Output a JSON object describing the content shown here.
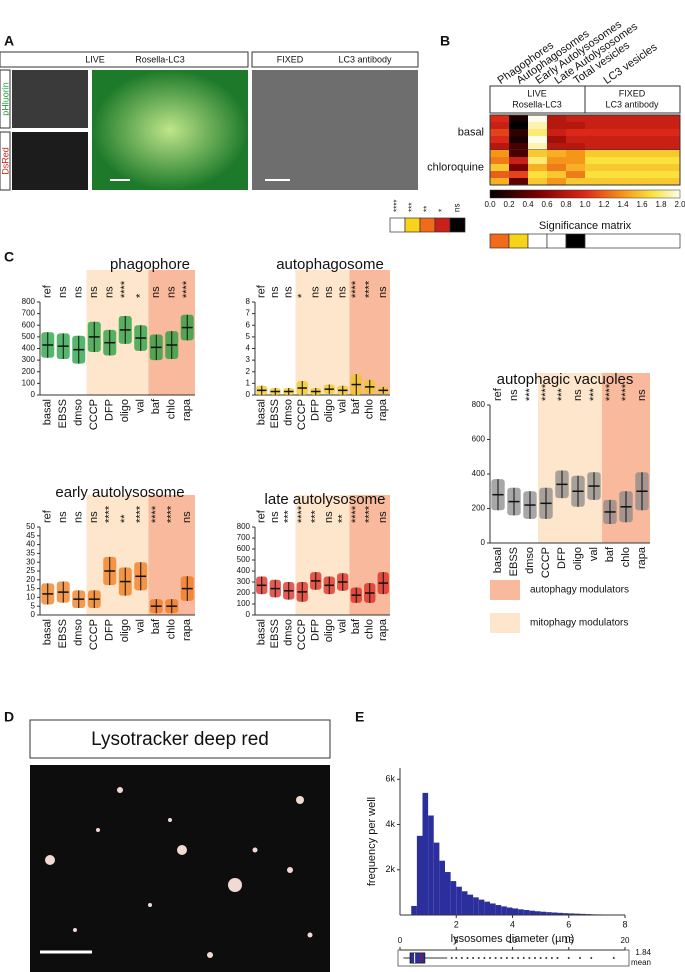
{
  "panel_a": {
    "label": "A",
    "live_header": "LIVE",
    "live_probe": "Rosella-LC3",
    "fixed_header": "FIXED",
    "fixed_probe": "LC3 antibody",
    "channel_green": "pHluorin",
    "channel_red": "DsRed"
  },
  "panel_b": {
    "label": "B",
    "columns": [
      "Phagophores",
      "Autophagosomes",
      "Early Autolysosomes",
      "Late Autolysosomes",
      "Total vesicles",
      "LC3 vesicles"
    ],
    "live_header": "LIVE",
    "live_probe": "Rosella-LC3",
    "fixed_header": "FIXED",
    "fixed_probe": "LC3 antibody",
    "row_groups": [
      {
        "name": "basal",
        "values": [
          [
            1.0,
            0.1,
            2.0,
            0.8,
            0.9,
            0.9
          ],
          [
            0.9,
            0.0,
            1.9,
            0.8,
            0.8,
            0.9
          ],
          [
            1.1,
            0.2,
            1.8,
            0.9,
            1.0,
            1.0
          ],
          [
            1.0,
            0.1,
            2.0,
            0.7,
            0.9,
            0.9
          ],
          [
            0.8,
            0.3,
            1.9,
            0.8,
            0.8,
            0.9
          ]
        ]
      },
      {
        "name": "chloroquine",
        "values": [
          [
            1.4,
            0.3,
            1.6,
            1.5,
            1.4,
            1.6
          ],
          [
            1.3,
            0.9,
            1.8,
            1.4,
            1.4,
            1.7
          ],
          [
            1.6,
            0.5,
            1.5,
            1.3,
            1.5,
            1.6
          ],
          [
            1.2,
            1.1,
            1.7,
            1.6,
            1.3,
            1.7
          ],
          [
            1.5,
            0.4,
            1.6,
            1.4,
            1.6,
            1.6
          ]
        ]
      }
    ],
    "colorbar_lim": [
      0,
      2
    ],
    "colorbar_ticks": [
      {
        "value": 0,
        "label": "0.0"
      },
      0.2,
      0.4,
      0.6,
      0.8,
      {
        "value": 1,
        "label": "1.0"
      },
      1.2,
      1.4,
      1.6,
      1.8,
      {
        "value": 2,
        "label": "2.0"
      }
    ],
    "significance_legend": [
      "****",
      "***",
      "**",
      "*",
      "ns"
    ],
    "significance_colors": [
      "#ffffff",
      "#f7d31a",
      "#f26b1a",
      "#c9201a",
      "#000000"
    ],
    "significance_title": "Significance matrix",
    "significance_matrix": [
      "**",
      "***",
      "****",
      "****",
      "ns",
      "****"
    ]
  },
  "panel_c": {
    "label": "C",
    "categories": [
      "basal",
      "EBSS",
      "dmso",
      "CCCP",
      "DFP",
      "oligo",
      "val",
      "baf",
      "chlo",
      "rapa"
    ],
    "charts": [
      {
        "title": "phagophore",
        "color": "#1f9e3c",
        "ylim": [
          0,
          800
        ],
        "yticks": [
          0,
          100,
          200,
          300,
          400,
          500,
          600,
          700,
          800
        ],
        "significance": [
          "ref",
          "ns",
          "ns",
          "ns",
          "ns",
          "****",
          "*",
          "ns",
          "ns",
          "****"
        ],
        "means": [
          430,
          420,
          390,
          500,
          450,
          560,
          490,
          410,
          430,
          580
        ],
        "sd": [
          110,
          110,
          120,
          130,
          110,
          120,
          110,
          110,
          120,
          110
        ]
      },
      {
        "title": "autophagosome",
        "color": "#f2c81e",
        "ylim": [
          0,
          8
        ],
        "yticks": [
          0,
          1,
          2,
          3,
          4,
          5,
          6,
          7,
          8
        ],
        "significance": [
          "ref",
          "ns",
          "ns",
          "*",
          "ns",
          "ns",
          "ns",
          "****",
          "****",
          "ns"
        ],
        "means": [
          0.4,
          0.3,
          0.3,
          0.6,
          0.3,
          0.5,
          0.4,
          0.9,
          0.7,
          0.4
        ],
        "sd": [
          0.4,
          0.3,
          0.3,
          0.6,
          0.3,
          0.4,
          0.4,
          0.9,
          0.6,
          0.3
        ]
      },
      {
        "title": "early autolysosome",
        "color": "#f07a1a",
        "ylim": [
          0,
          50
        ],
        "yticks": [
          0,
          5,
          10,
          15,
          20,
          25,
          30,
          35,
          40,
          45,
          50
        ],
        "significance": [
          "ref",
          "ns",
          "ns",
          "ns",
          "****",
          "**",
          "****",
          "****",
          "****",
          "ns"
        ],
        "means": [
          12,
          13,
          9,
          9,
          25,
          19,
          22,
          5,
          5,
          15
        ],
        "sd": [
          6,
          6,
          5,
          5,
          8,
          8,
          8,
          4,
          4,
          7
        ]
      },
      {
        "title": "late autolysosome",
        "color": "#d9261c",
        "ylim": [
          0,
          800
        ],
        "yticks": [
          0,
          100,
          200,
          300,
          400,
          500,
          600,
          700,
          800
        ],
        "significance": [
          "ref",
          "ns",
          "***",
          "****",
          "***",
          "ns",
          "**",
          "****",
          "****",
          "ns"
        ],
        "means": [
          270,
          240,
          220,
          210,
          310,
          270,
          300,
          180,
          200,
          290
        ],
        "sd": [
          80,
          80,
          80,
          90,
          80,
          80,
          80,
          70,
          90,
          100
        ]
      },
      {
        "title": "autophagic vacuoles",
        "color": "#8a8a8a",
        "ylim": [
          0,
          800
        ],
        "yticks": [
          0,
          200,
          400,
          600,
          800
        ],
        "significance": [
          "ref",
          "ns",
          "***",
          "****",
          "***",
          "ns",
          "***",
          "****",
          "****",
          "ns"
        ],
        "means": [
          280,
          240,
          220,
          230,
          340,
          300,
          330,
          180,
          210,
          300
        ],
        "sd": [
          90,
          80,
          80,
          90,
          80,
          90,
          80,
          70,
          90,
          110
        ]
      }
    ],
    "legend": [
      {
        "name": "autophagy modulators",
        "color": "#f8b99c"
      },
      {
        "name": "mitophagy modulators",
        "color": "#fde6cc"
      }
    ]
  },
  "panel_d": {
    "label": "D",
    "title": "Lysotracker deep red"
  },
  "panel_e": {
    "label": "E",
    "type": "histogram",
    "color": "#2b2f9e",
    "bins": [
      0.4,
      0.6,
      0.8,
      1,
      1.2,
      1.4,
      1.6,
      1.8,
      2,
      2.2,
      2.4,
      2.6,
      2.8,
      3,
      3.2,
      3.4,
      3.6,
      3.8,
      4,
      4.2,
      4.4,
      4.6,
      4.8,
      5,
      5.2,
      5.4,
      5.6,
      5.8,
      6,
      6.2,
      6.4,
      6.6,
      6.8,
      7,
      7.2,
      7.4
    ],
    "counts": [
      400,
      3500,
      5400,
      4400,
      3200,
      2400,
      1900,
      1500,
      1250,
      1050,
      900,
      780,
      680,
      590,
      510,
      440,
      380,
      330,
      290,
      250,
      220,
      190,
      165,
      145,
      125,
      110,
      95,
      80,
      70,
      60,
      50,
      40,
      30,
      25,
      20
    ],
    "xlim": [
      0,
      8
    ],
    "xticks": [
      2,
      4,
      6,
      8
    ],
    "ylim": [
      0,
      6500
    ],
    "yticks": [
      {
        "value": 2000,
        "label": "2k"
      },
      {
        "value": 4000,
        "label": "4k"
      },
      {
        "value": 6000,
        "label": "6k"
      }
    ],
    "xlabel": "lysosomes diameter (µm)",
    "ylabel": "frequency per well",
    "box": {
      "xlim": [
        0,
        20
      ],
      "xticks": [
        0,
        5,
        10,
        15,
        20
      ],
      "whisker_low": 0.3,
      "q1": 0.9,
      "median": 1.3,
      "q3": 2.2,
      "whisker_high": 4.2,
      "mean": 1.84,
      "mean_name": "mean",
      "outliers": [
        4.6,
        5,
        5.5,
        6,
        6.5,
        7,
        7.5,
        8,
        8.5,
        9,
        9.5,
        10,
        10.5,
        11,
        11.5,
        12,
        12.5,
        13,
        13.5,
        14,
        15,
        16,
        17,
        19
      ]
    }
  }
}
